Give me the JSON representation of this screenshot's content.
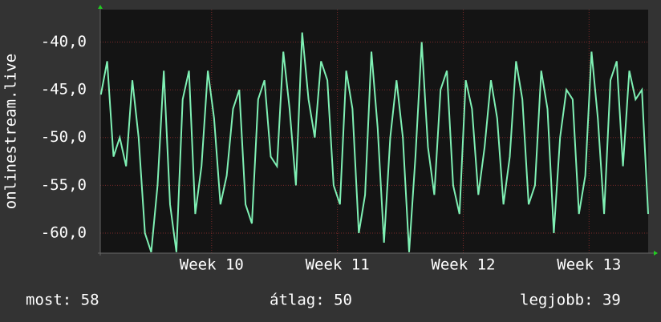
{
  "chart_data": {
    "type": "line",
    "y_label": "onlinestream.live",
    "x": [
      9.12,
      9.17,
      9.22,
      9.27,
      9.32,
      9.37,
      9.42,
      9.47,
      9.52,
      9.57,
      9.62,
      9.67,
      9.72,
      9.77,
      9.82,
      9.87,
      9.92,
      9.97,
      10.02,
      10.07,
      10.12,
      10.17,
      10.22,
      10.27,
      10.32,
      10.37,
      10.42,
      10.47,
      10.52,
      10.57,
      10.62,
      10.67,
      10.72,
      10.77,
      10.82,
      10.87,
      10.92,
      10.97,
      11.02,
      11.07,
      11.12,
      11.17,
      11.22,
      11.27,
      11.32,
      11.37,
      11.42,
      11.47,
      11.52,
      11.57,
      11.62,
      11.67,
      11.72,
      11.77,
      11.82,
      11.87,
      11.92,
      11.97,
      12.02,
      12.07,
      12.12,
      12.17,
      12.22,
      12.27,
      12.32,
      12.37,
      12.42,
      12.47,
      12.52,
      12.57,
      12.62,
      12.67,
      12.72,
      12.77,
      12.82,
      12.87,
      12.92,
      12.97,
      13.02,
      13.07,
      13.12,
      13.17,
      13.22,
      13.27,
      13.32,
      13.37,
      13.42,
      13.47
    ],
    "values": [
      -45.5,
      -42,
      -52,
      -50,
      -53,
      -44,
      -50,
      -60,
      -62,
      -55,
      -43,
      -57,
      -62,
      -46,
      -43,
      -58,
      -53,
      -43,
      -48,
      -57,
      -54,
      -47,
      -45,
      -57,
      -59,
      -46,
      -44,
      -52,
      -53,
      -41,
      -47,
      -55,
      -39,
      -46,
      -50,
      -42,
      -44,
      -55,
      -57,
      -43,
      -47,
      -60,
      -56,
      -41,
      -49,
      -61,
      -50,
      -44,
      -50,
      -62,
      -52,
      -40,
      -51,
      -56,
      -45,
      -43,
      -55,
      -58,
      -44,
      -47,
      -56,
      -51,
      -44,
      -48,
      -57,
      -52,
      -42,
      -46,
      -57,
      -55,
      -43,
      -47,
      -60,
      -50,
      -45,
      -46,
      -58,
      -54,
      -41,
      -48,
      -58,
      -44,
      -42,
      -53,
      -43,
      -46,
      -45,
      -58
    ],
    "color": "#7ff0b4",
    "xlim": [
      9.115,
      13.47
    ],
    "ylim": [
      -62.1,
      -36.6
    ],
    "xticks": [
      {
        "value": 10,
        "label": "Week 10"
      },
      {
        "value": 11,
        "label": "Week 11"
      },
      {
        "value": 12,
        "label": "Week 12"
      },
      {
        "value": 13,
        "label": "Week 13"
      }
    ],
    "yticks": [
      {
        "value": -60,
        "label": "-60,0"
      },
      {
        "value": -55,
        "label": "-55,0"
      },
      {
        "value": -50,
        "label": "-50,0"
      },
      {
        "value": -45,
        "label": "-45,0"
      },
      {
        "value": -40,
        "label": "-40,0"
      }
    ],
    "grid": true,
    "stats": [
      "most: 58",
      "átlag: 50",
      "legjobb: 39"
    ]
  }
}
